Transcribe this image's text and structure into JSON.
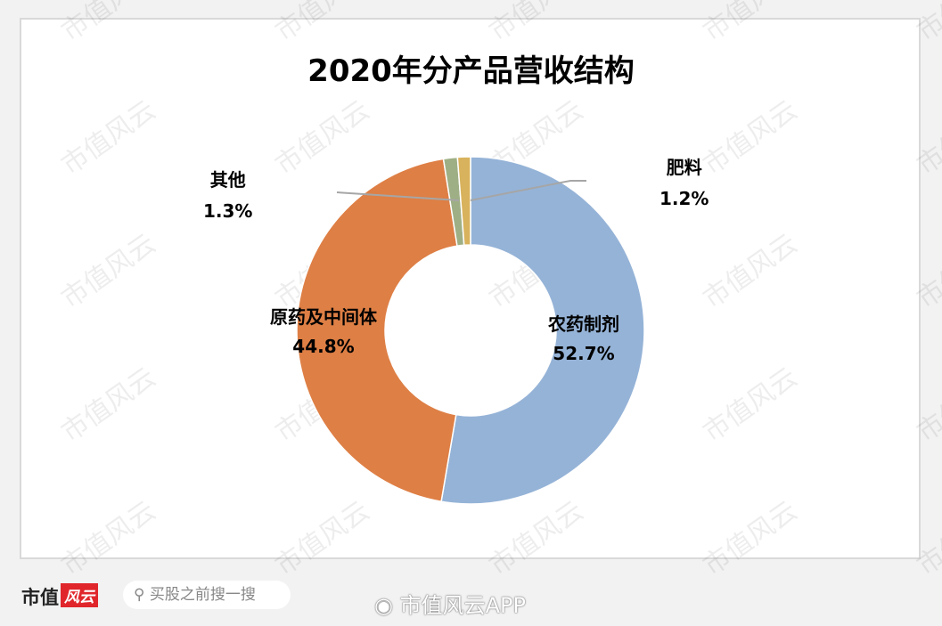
{
  "chart_data": {
    "type": "pie",
    "variant": "donut",
    "title": "2020年分产品营收结构",
    "slices": [
      {
        "label": "农药制剂",
        "value": 52.7,
        "value_label": "52.7%",
        "color": "#95B3D7"
      },
      {
        "label": "原药及中间体",
        "value": 44.8,
        "value_label": "44.8%",
        "color": "#DE7F45"
      },
      {
        "label": "其他",
        "value": 1.3,
        "value_label": "1.3%",
        "color": "#9FAF85"
      },
      {
        "label": "肥料",
        "value": 1.2,
        "value_label": "1.2%",
        "color": "#D8B25C"
      }
    ],
    "start": "top",
    "direction": "clockwise",
    "legend": "none"
  },
  "watermark": "市值风云",
  "footer": {
    "logo_text": "市值",
    "logo_badge": "风云",
    "search_placeholder": "买股之前搜一搜",
    "brand": "市值风云APP"
  }
}
